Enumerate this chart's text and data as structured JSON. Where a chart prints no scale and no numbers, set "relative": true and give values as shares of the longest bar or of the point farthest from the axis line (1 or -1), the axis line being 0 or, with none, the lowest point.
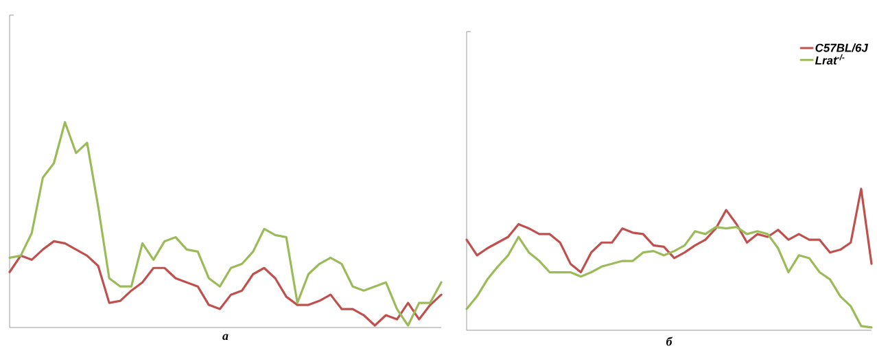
{
  "chart_data": [
    {
      "type": "line",
      "relative": true,
      "xlabel": "а",
      "legend": false,
      "categories": [
        null,
        null,
        null,
        null,
        null,
        null,
        null,
        null,
        null,
        null,
        null,
        null,
        null,
        null,
        null,
        null,
        null,
        null,
        null,
        null,
        null,
        null,
        null,
        null,
        null,
        null,
        null,
        null,
        null,
        null,
        null,
        null,
        null,
        null,
        null,
        null,
        null,
        null,
        null,
        null
      ],
      "series": [
        {
          "color": "#c0504d",
          "values": [
            0.27,
            0.35,
            0.33,
            0.38,
            0.42,
            0.41,
            0.38,
            0.35,
            0.3,
            0.12,
            0.13,
            0.18,
            0.22,
            0.29,
            0.29,
            0.24,
            0.22,
            0.2,
            0.11,
            0.09,
            0.16,
            0.18,
            0.26,
            0.29,
            0.24,
            0.15,
            0.11,
            0.11,
            0.13,
            0.16,
            0.09,
            0.09,
            0.06,
            0.01,
            0.06,
            0.04,
            0.12,
            0.04,
            0.11,
            0.16
          ]
        },
        {
          "color": "#9bbb59",
          "values": [
            0.34,
            0.35,
            0.46,
            0.73,
            0.8,
            1.0,
            0.85,
            0.9,
            0.59,
            0.24,
            0.2,
            0.2,
            0.41,
            0.33,
            0.42,
            0.44,
            0.38,
            0.37,
            0.24,
            0.2,
            0.29,
            0.31,
            0.37,
            0.48,
            0.45,
            0.44,
            0.12,
            0.26,
            0.31,
            0.34,
            0.31,
            0.2,
            0.18,
            0.2,
            0.22,
            0.09,
            0.01,
            0.12,
            0.12,
            0.22
          ]
        }
      ]
    },
    {
      "type": "line",
      "relative": true,
      "xlabel": "б",
      "legend": "top right",
      "categories": [
        null,
        null,
        null,
        null,
        null,
        null,
        null,
        null,
        null,
        null,
        null,
        null,
        null,
        null,
        null,
        null,
        null,
        null,
        null,
        null,
        null,
        null,
        null,
        null,
        null,
        null,
        null,
        null,
        null,
        null,
        null,
        null,
        null,
        null,
        null,
        null,
        null,
        null,
        null,
        null
      ],
      "series": [
        {
          "name": "C57BL/6J",
          "color": "#c0504d",
          "values": [
            0.64,
            0.53,
            0.58,
            0.62,
            0.66,
            0.75,
            0.72,
            0.68,
            0.68,
            0.62,
            0.47,
            0.41,
            0.55,
            0.62,
            0.62,
            0.72,
            0.69,
            0.68,
            0.6,
            0.59,
            0.51,
            0.55,
            0.6,
            0.64,
            0.72,
            0.85,
            0.75,
            0.62,
            0.68,
            0.66,
            0.71,
            0.64,
            0.68,
            0.64,
            0.64,
            0.55,
            0.57,
            0.62,
            1.0,
            0.47
          ]
        },
        {
          "name": "Lrat$^{-/-}$",
          "color": "#9bbb59",
          "values": [
            0.15,
            0.24,
            0.36,
            0.45,
            0.53,
            0.66,
            0.55,
            0.49,
            0.41,
            0.41,
            0.41,
            0.38,
            0.41,
            0.45,
            0.47,
            0.49,
            0.49,
            0.55,
            0.56,
            0.53,
            0.56,
            0.6,
            0.7,
            0.68,
            0.73,
            0.72,
            0.73,
            0.68,
            0.7,
            0.68,
            0.58,
            0.41,
            0.53,
            0.51,
            0.41,
            0.36,
            0.24,
            0.17,
            0.03,
            0.02
          ]
        }
      ]
    }
  ]
}
